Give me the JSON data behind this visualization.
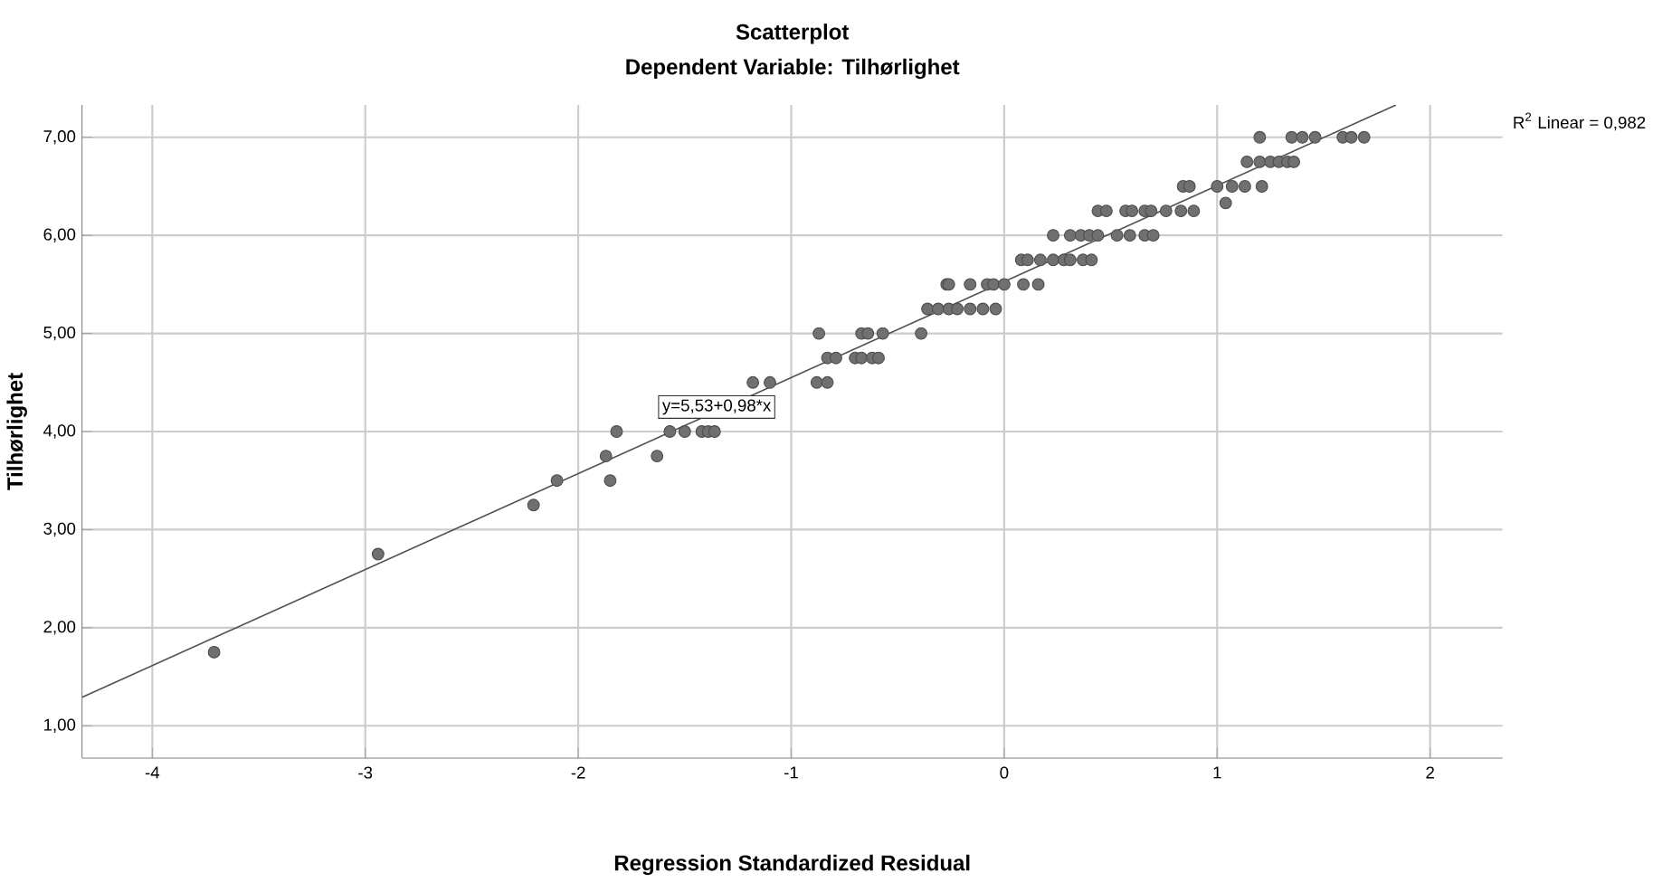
{
  "chart_data": {
    "type": "scatter",
    "title": "Scatterplot",
    "subtitle": "Dependent Variable: Tilhørlighet",
    "xlabel": "Regression Standardized Residual",
    "ylabel": "Tilhørlighet",
    "xlim": [
      -4.33,
      2.34
    ],
    "ylim": [
      0.67,
      7.33
    ],
    "xticks": [
      -4,
      -3,
      -2,
      -1,
      0,
      1,
      2
    ],
    "yticks": [
      {
        "value": 1,
        "label": "1,00"
      },
      {
        "value": 2,
        "label": "2,00"
      },
      {
        "value": 3,
        "label": "3,00"
      },
      {
        "value": 4,
        "label": "4,00"
      },
      {
        "value": 5,
        "label": "5,00"
      },
      {
        "value": 6,
        "label": "6,00"
      },
      {
        "value": 7,
        "label": "7,00"
      }
    ],
    "grid": true,
    "marker": "circle",
    "series": [
      {
        "color": "#707070",
        "x": [
          -3.71,
          -2.94,
          -2.21,
          -2.1,
          -1.85,
          -1.87,
          -1.63,
          -1.82,
          -1.57,
          -1.5,
          -1.42,
          -1.39,
          -1.36,
          -1.18,
          -1.1,
          -0.88,
          -0.83,
          -0.83,
          -0.79,
          -0.7,
          -0.67,
          -0.62,
          -0.59,
          -0.87,
          -0.67,
          -0.64,
          -0.57,
          -0.39,
          -0.36,
          -0.31,
          -0.26,
          -0.22,
          -0.16,
          -0.1,
          -0.04,
          -0.27,
          -0.26,
          -0.16,
          -0.08,
          -0.05,
          0.0,
          0.09,
          0.16,
          0.08,
          0.11,
          0.17,
          0.23,
          0.28,
          0.31,
          0.37,
          0.41,
          0.23,
          0.31,
          0.36,
          0.4,
          0.44,
          0.53,
          0.59,
          0.66,
          0.7,
          0.44,
          0.48,
          0.57,
          0.6,
          0.66,
          0.69,
          0.76,
          0.83,
          0.89,
          0.84,
          0.87,
          1.0,
          1.07,
          1.13,
          1.21,
          1.04,
          1.14,
          1.2,
          1.25,
          1.29,
          1.33,
          1.36,
          1.2,
          1.35,
          1.4,
          1.46,
          1.59,
          1.63,
          1.69
        ],
        "values": [
          1.75,
          2.75,
          3.25,
          3.5,
          3.5,
          3.75,
          3.75,
          4.0,
          4.0,
          4.0,
          4.0,
          4.0,
          4.0,
          4.5,
          4.5,
          4.5,
          4.5,
          4.75,
          4.75,
          4.75,
          4.75,
          4.75,
          4.75,
          5.0,
          5.0,
          5.0,
          5.0,
          5.0,
          5.25,
          5.25,
          5.25,
          5.25,
          5.25,
          5.25,
          5.25,
          5.5,
          5.5,
          5.5,
          5.5,
          5.5,
          5.5,
          5.5,
          5.5,
          5.75,
          5.75,
          5.75,
          5.75,
          5.75,
          5.75,
          5.75,
          5.75,
          6.0,
          6.0,
          6.0,
          6.0,
          6.0,
          6.0,
          6.0,
          6.0,
          6.0,
          6.25,
          6.25,
          6.25,
          6.25,
          6.25,
          6.25,
          6.25,
          6.25,
          6.25,
          6.5,
          6.5,
          6.5,
          6.5,
          6.5,
          6.5,
          6.33,
          6.75,
          6.75,
          6.75,
          6.75,
          6.75,
          6.75,
          7.0,
          7.0,
          7.0,
          7.0,
          7.0,
          7.0,
          7.0
        ]
      },
      {
        "type": "line",
        "marker": "none",
        "color": "#505050",
        "x": [
          -4.33,
          1.84
        ],
        "values": [
          1.29,
          7.33
        ]
      }
    ],
    "annotations": [
      {
        "text": "y=5,53+0,98*x",
        "x": -1.35,
        "y": 4.25
      },
      "R$^{2}$ Linear = 0,982"
    ]
  }
}
